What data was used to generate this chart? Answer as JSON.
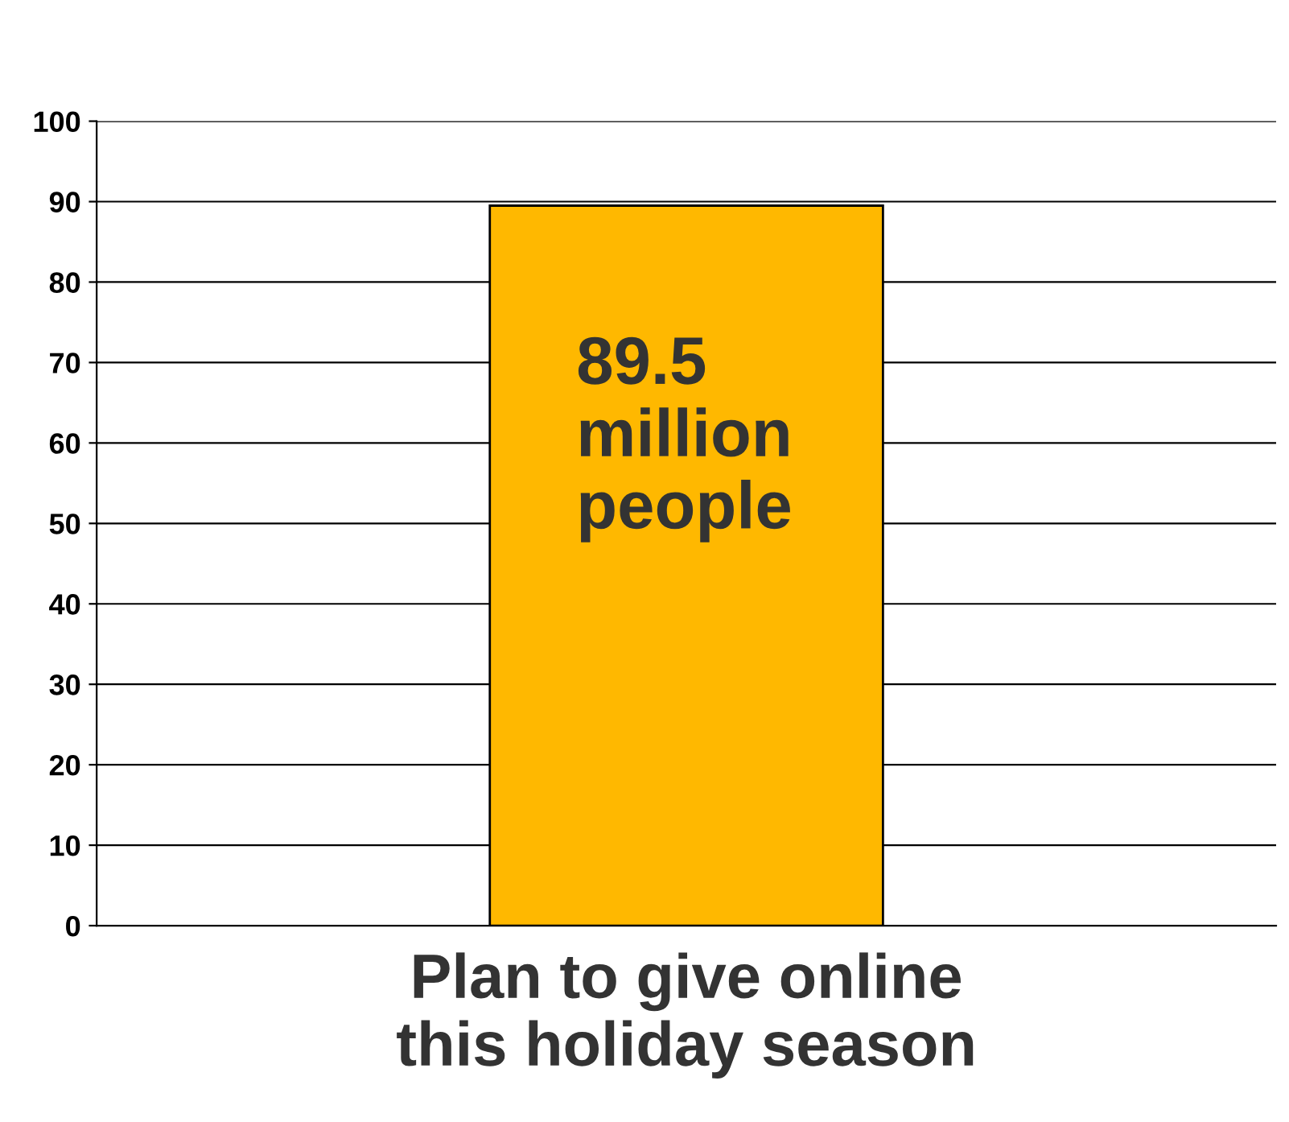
{
  "chart_data": {
    "type": "bar",
    "categories": [
      "Plan to give online\nthis holiday season"
    ],
    "values": [
      89.5
    ],
    "color": "#ffb800",
    "annotations": [
      {
        "text": "89.5\nmillion\npeople",
        "x": "Plan to give online\nthis holiday season",
        "y": 89.5
      }
    ],
    "ylim": [
      0,
      100
    ],
    "yticks": [
      0,
      10,
      20,
      30,
      40,
      50,
      60,
      70,
      80,
      90,
      100
    ],
    "grid": "y"
  }
}
